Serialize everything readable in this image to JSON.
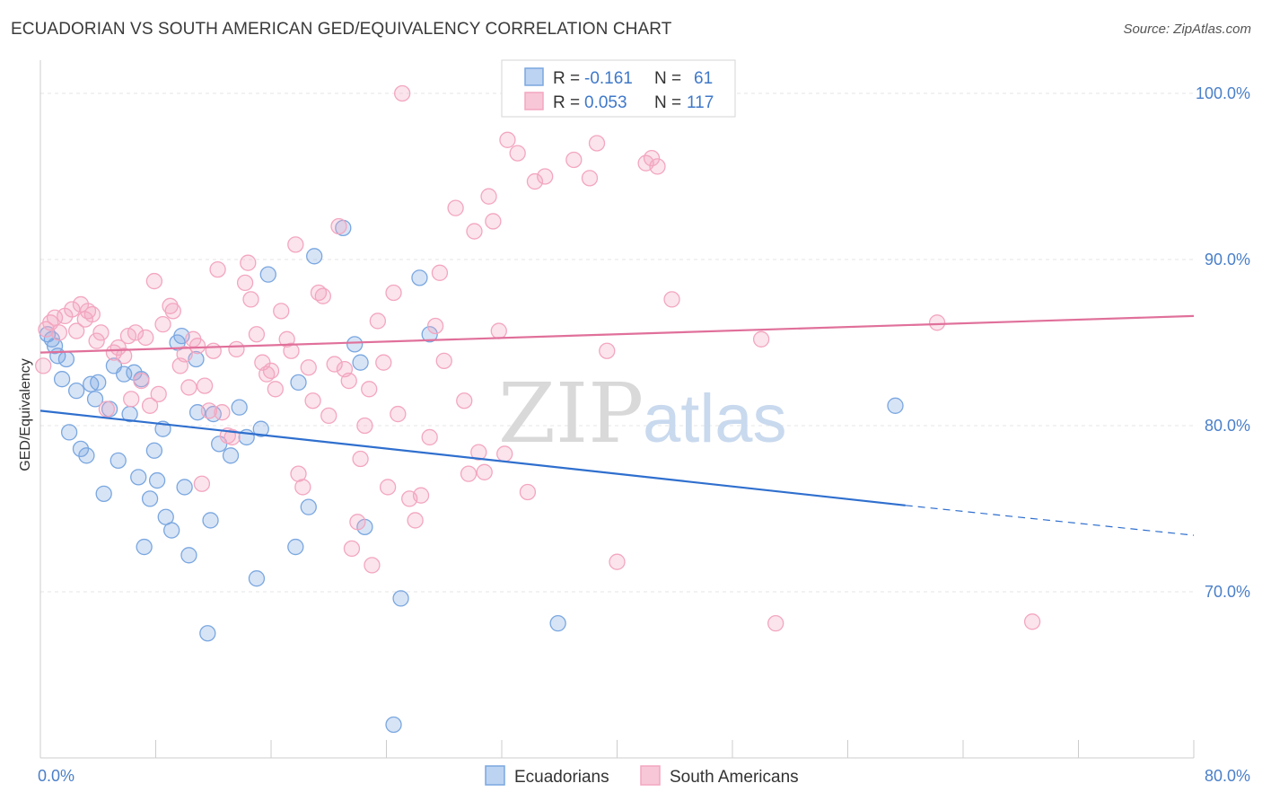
{
  "title": "ECUADORIAN VS SOUTH AMERICAN GED/EQUIVALENCY CORRELATION CHART",
  "source": "Source: ZipAtlas.com",
  "watermark": {
    "zip": "ZIP",
    "atlas": "atlas"
  },
  "chart_data": {
    "type": "scatter",
    "title": "ECUADORIAN VS SOUTH AMERICAN GED/EQUIVALENCY CORRELATION CHART",
    "xlabel": "",
    "ylabel": "GED/Equivalency",
    "xlim": [
      0,
      80
    ],
    "ylim": [
      60,
      102
    ],
    "x_tick_labels": [
      {
        "value": 0,
        "label": "0.0%"
      },
      {
        "value": 80,
        "label": "80.0%"
      }
    ],
    "y_tick_labels": [
      {
        "value": 70,
        "label": "70.0%"
      },
      {
        "value": 80,
        "label": "80.0%"
      },
      {
        "value": 90,
        "label": "90.0%"
      },
      {
        "value": 100,
        "label": "100.0%"
      }
    ],
    "grid": true,
    "legend_position": "top-center",
    "series": [
      {
        "name": "Ecuadorians",
        "color": "#7aa7e0",
        "line_color": "#2f6fce",
        "R": "-0.161",
        "N": "61",
        "trend": {
          "x0": 0,
          "y0": 80.9,
          "x1": 60,
          "y1": 75.2,
          "dash_to_x": 80,
          "dash_to_y": 73.4
        },
        "points": [
          [
            0.5,
            85.5
          ],
          [
            0.8,
            85.2
          ],
          [
            1.0,
            84.8
          ],
          [
            1.2,
            84.2
          ],
          [
            1.5,
            82.8
          ],
          [
            1.8,
            84.0
          ],
          [
            2.0,
            79.6
          ],
          [
            2.5,
            82.1
          ],
          [
            2.8,
            78.6
          ],
          [
            3.2,
            78.2
          ],
          [
            3.5,
            82.5
          ],
          [
            3.8,
            81.6
          ],
          [
            4.0,
            82.6
          ],
          [
            4.4,
            75.9
          ],
          [
            4.8,
            81.0
          ],
          [
            5.1,
            83.6
          ],
          [
            5.4,
            77.9
          ],
          [
            5.8,
            83.1
          ],
          [
            6.2,
            80.7
          ],
          [
            6.5,
            83.2
          ],
          [
            6.8,
            76.9
          ],
          [
            7.0,
            82.8
          ],
          [
            7.2,
            72.7
          ],
          [
            7.6,
            75.6
          ],
          [
            7.9,
            78.5
          ],
          [
            8.1,
            76.7
          ],
          [
            8.5,
            79.8
          ],
          [
            8.7,
            74.5
          ],
          [
            9.1,
            73.7
          ],
          [
            9.5,
            85.0
          ],
          [
            9.8,
            85.4
          ],
          [
            10.0,
            76.3
          ],
          [
            10.3,
            72.2
          ],
          [
            10.8,
            84.0
          ],
          [
            10.9,
            80.8
          ],
          [
            11.6,
            67.5
          ],
          [
            11.8,
            74.3
          ],
          [
            12.0,
            80.7
          ],
          [
            12.4,
            78.9
          ],
          [
            13.2,
            78.2
          ],
          [
            13.8,
            81.1
          ],
          [
            14.3,
            79.3
          ],
          [
            15.0,
            70.8
          ],
          [
            15.3,
            79.8
          ],
          [
            15.8,
            89.1
          ],
          [
            17.7,
            72.7
          ],
          [
            17.9,
            82.6
          ],
          [
            18.6,
            75.1
          ],
          [
            19.0,
            90.2
          ],
          [
            21.0,
            91.9
          ],
          [
            21.8,
            84.9
          ],
          [
            22.2,
            83.8
          ],
          [
            22.5,
            73.9
          ],
          [
            24.5,
            62.0
          ],
          [
            25.0,
            69.6
          ],
          [
            26.3,
            88.9
          ],
          [
            27.0,
            85.5
          ],
          [
            35.9,
            68.1
          ],
          [
            59.3,
            81.2
          ]
        ]
      },
      {
        "name": "South Americans",
        "color": "#f3a6c0",
        "line_color": "#e0709a",
        "R": "0.053",
        "N": "117",
        "trend": {
          "x0": 0,
          "y0": 84.4,
          "x1": 80,
          "y1": 86.6
        },
        "points": [
          [
            0.2,
            83.6
          ],
          [
            0.4,
            85.8
          ],
          [
            0.7,
            86.2
          ],
          [
            1.0,
            86.5
          ],
          [
            1.3,
            85.6
          ],
          [
            1.7,
            86.6
          ],
          [
            2.2,
            87.0
          ],
          [
            2.5,
            85.7
          ],
          [
            2.8,
            87.3
          ],
          [
            3.1,
            86.4
          ],
          [
            3.3,
            86.9
          ],
          [
            3.6,
            86.7
          ],
          [
            3.9,
            85.1
          ],
          [
            4.2,
            85.6
          ],
          [
            4.6,
            81.0
          ],
          [
            5.1,
            84.4
          ],
          [
            5.4,
            84.7
          ],
          [
            5.8,
            84.2
          ],
          [
            6.1,
            85.4
          ],
          [
            6.3,
            81.6
          ],
          [
            6.6,
            85.6
          ],
          [
            7.0,
            82.7
          ],
          [
            7.3,
            85.3
          ],
          [
            7.6,
            81.2
          ],
          [
            7.9,
            88.7
          ],
          [
            8.2,
            81.9
          ],
          [
            8.5,
            86.1
          ],
          [
            9.0,
            87.2
          ],
          [
            9.2,
            86.9
          ],
          [
            9.7,
            83.6
          ],
          [
            10.0,
            84.3
          ],
          [
            10.3,
            82.3
          ],
          [
            10.6,
            85.2
          ],
          [
            10.9,
            84.8
          ],
          [
            11.2,
            76.5
          ],
          [
            11.4,
            82.4
          ],
          [
            11.7,
            80.9
          ],
          [
            12.0,
            84.5
          ],
          [
            12.3,
            89.4
          ],
          [
            12.6,
            80.8
          ],
          [
            13.0,
            79.4
          ],
          [
            13.3,
            79.3
          ],
          [
            13.6,
            84.6
          ],
          [
            14.2,
            88.6
          ],
          [
            14.4,
            89.8
          ],
          [
            14.6,
            87.6
          ],
          [
            15.0,
            85.5
          ],
          [
            15.4,
            83.8
          ],
          [
            15.7,
            83.1
          ],
          [
            16.0,
            83.3
          ],
          [
            16.3,
            82.2
          ],
          [
            16.7,
            86.9
          ],
          [
            17.1,
            85.2
          ],
          [
            17.4,
            84.5
          ],
          [
            17.7,
            90.9
          ],
          [
            17.9,
            77.1
          ],
          [
            18.2,
            76.3
          ],
          [
            18.6,
            83.5
          ],
          [
            18.9,
            81.5
          ],
          [
            19.3,
            88.0
          ],
          [
            19.6,
            87.8
          ],
          [
            20.0,
            80.6
          ],
          [
            20.4,
            83.7
          ],
          [
            20.7,
            92.0
          ],
          [
            21.1,
            83.4
          ],
          [
            21.4,
            82.7
          ],
          [
            21.6,
            72.6
          ],
          [
            22.0,
            74.2
          ],
          [
            22.2,
            78.0
          ],
          [
            22.5,
            80.0
          ],
          [
            22.8,
            82.2
          ],
          [
            23.0,
            71.6
          ],
          [
            23.4,
            86.3
          ],
          [
            23.8,
            83.8
          ],
          [
            24.1,
            76.3
          ],
          [
            24.5,
            88.0
          ],
          [
            24.8,
            80.7
          ],
          [
            25.1,
            100.0
          ],
          [
            25.6,
            75.6
          ],
          [
            26.0,
            74.3
          ],
          [
            26.4,
            75.8
          ],
          [
            27.0,
            79.3
          ],
          [
            27.4,
            86.0
          ],
          [
            27.7,
            89.2
          ],
          [
            28.0,
            83.9
          ],
          [
            28.8,
            93.1
          ],
          [
            29.4,
            81.5
          ],
          [
            29.7,
            77.1
          ],
          [
            30.1,
            91.7
          ],
          [
            30.4,
            78.4
          ],
          [
            30.8,
            77.2
          ],
          [
            31.1,
            93.8
          ],
          [
            31.4,
            92.3
          ],
          [
            31.8,
            85.7
          ],
          [
            32.2,
            78.3
          ],
          [
            32.4,
            97.2
          ],
          [
            33.1,
            96.4
          ],
          [
            33.8,
            76.0
          ],
          [
            34.3,
            94.7
          ],
          [
            35.0,
            95.0
          ],
          [
            35.6,
            99.9
          ],
          [
            37.0,
            96.0
          ],
          [
            38.1,
            94.9
          ],
          [
            38.6,
            97.0
          ],
          [
            39.3,
            84.5
          ],
          [
            40.0,
            71.8
          ],
          [
            42.0,
            95.8
          ],
          [
            42.4,
            96.1
          ],
          [
            42.8,
            95.6
          ],
          [
            43.8,
            87.6
          ],
          [
            50.0,
            85.2
          ],
          [
            51.0,
            68.1
          ],
          [
            62.2,
            86.2
          ],
          [
            68.8,
            68.2
          ]
        ]
      }
    ]
  }
}
